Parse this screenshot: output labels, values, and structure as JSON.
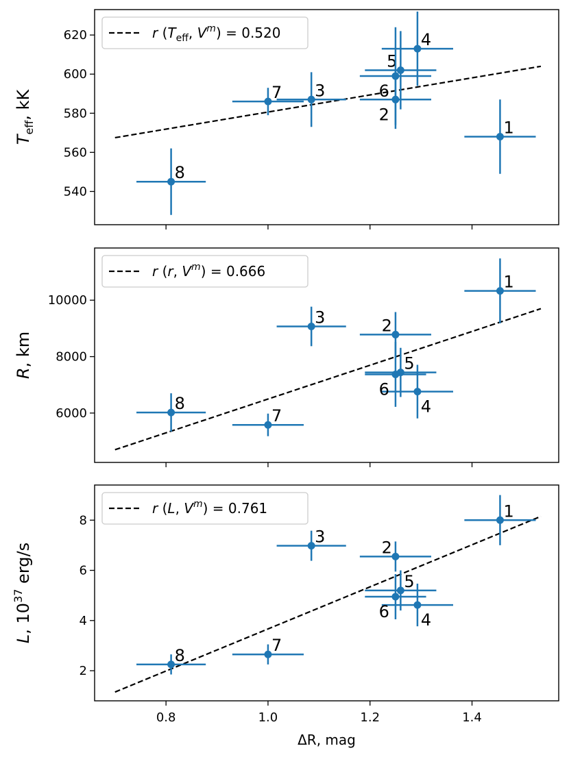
{
  "chart_data": {
    "type": "scatter",
    "xlabel": "ΔR, mag",
    "x_ticks": [
      "0.8",
      "1.0",
      "1.2",
      "1.4"
    ],
    "x_tick_values": [
      0.8,
      1.0,
      1.2,
      1.4
    ],
    "xlim": [
      0.66,
      1.57
    ],
    "panels": [
      {
        "id": "teff",
        "ylabel_main": "T",
        "ylabel_sub": "eff",
        "ylabel_rest": ", kK",
        "ylim": [
          523,
          633
        ],
        "y_ticks": [
          "540",
          "560",
          "580",
          "600",
          "620"
        ],
        "y_tick_values": [
          540,
          560,
          580,
          600,
          620
        ],
        "legend": {
          "r": "r",
          "lp": "(",
          "var_main": "T",
          "var_sub": "eff",
          "comma": ", ",
          "v": "V",
          "v_sup": "m",
          "rp": ")",
          "eq": " = 0.520"
        },
        "fit": [
          [
            0.7,
            567.5
          ],
          [
            1.535,
            604
          ]
        ],
        "points": [
          {
            "label": "1",
            "x": 1.455,
            "y": 568,
            "xerr": 0.07,
            "yerr": 19,
            "label_pos": "right-up"
          },
          {
            "label": "2",
            "x": 1.25,
            "y": 587,
            "xerr": 0.07,
            "yerr": 15,
            "label_pos": "left-down"
          },
          {
            "label": "3",
            "x": 1.085,
            "y": 587,
            "xerr": 0.068,
            "yerr": 14,
            "label_pos": "right-up"
          },
          {
            "label": "4",
            "x": 1.293,
            "y": 613,
            "xerr": 0.07,
            "yerr": 19,
            "label_pos": "right-up"
          },
          {
            "label": "5",
            "x": 1.26,
            "y": 602,
            "xerr": 0.07,
            "yerr": 20,
            "label_pos": "left-up"
          },
          {
            "label": "6",
            "x": 1.25,
            "y": 599,
            "xerr": 0.07,
            "yerr": 25,
            "label_pos": "left-down"
          },
          {
            "label": "7",
            "x": 1.0,
            "y": 586,
            "xerr": 0.07,
            "yerr": 7,
            "label_pos": "right-up"
          },
          {
            "label": "8",
            "x": 0.81,
            "y": 545,
            "xerr": 0.068,
            "yerr": 17,
            "label_pos": "right-up"
          }
        ]
      },
      {
        "id": "radius",
        "ylabel_main": "R",
        "ylabel_sub": "",
        "ylabel_rest": ", km",
        "ylim": [
          4250,
          11850
        ],
        "y_ticks": [
          "6000",
          "8000",
          "10000"
        ],
        "y_tick_values": [
          6000,
          8000,
          10000
        ],
        "legend": {
          "r": "r",
          "lp": "(",
          "var_main": "r",
          "var_sub": "",
          "comma": ", ",
          "v": "V",
          "v_sup": "m",
          "rp": ")",
          "eq": " = 0.666"
        },
        "fit": [
          [
            0.7,
            4700
          ],
          [
            1.535,
            9700
          ]
        ],
        "points": [
          {
            "label": "1",
            "x": 1.455,
            "y": 10330,
            "xerr": 0.07,
            "yerr": 1150,
            "label_pos": "right-up"
          },
          {
            "label": "2",
            "x": 1.25,
            "y": 8780,
            "xerr": 0.07,
            "yerr": 800,
            "label_pos": "left-up"
          },
          {
            "label": "3",
            "x": 1.085,
            "y": 9070,
            "xerr": 0.068,
            "yerr": 700,
            "label_pos": "right-up"
          },
          {
            "label": "4",
            "x": 1.293,
            "y": 6760,
            "xerr": 0.07,
            "yerr": 950,
            "label_pos": "right-down"
          },
          {
            "label": "5",
            "x": 1.26,
            "y": 7440,
            "xerr": 0.07,
            "yerr": 870,
            "label_pos": "right-up"
          },
          {
            "label": "6",
            "x": 1.25,
            "y": 7370,
            "xerr": 0.06,
            "yerr": 1150,
            "label_pos": "left-down"
          },
          {
            "label": "7",
            "x": 1.0,
            "y": 5580,
            "xerr": 0.07,
            "yerr": 400,
            "label_pos": "right-up"
          },
          {
            "label": "8",
            "x": 0.81,
            "y": 6020,
            "xerr": 0.068,
            "yerr": 680,
            "label_pos": "right-up"
          }
        ]
      },
      {
        "id": "lum",
        "ylabel_main": "L",
        "ylabel_sub": "",
        "ylabel_rest": ", 10",
        "ylabel_sup": "37",
        "ylabel_unit": " erg/s",
        "ylim": [
          0.8,
          9.4
        ],
        "y_ticks": [
          "2",
          "4",
          "6",
          "8"
        ],
        "y_tick_values": [
          2,
          4,
          6,
          8
        ],
        "legend": {
          "r": "r",
          "lp": "(",
          "var_main": "L",
          "var_sub": "",
          "comma": ", ",
          "v": "V",
          "v_sup": "m",
          "rp": ")",
          "eq": " = 0.761"
        },
        "fit": [
          [
            0.7,
            1.15
          ],
          [
            1.535,
            8.15
          ]
        ],
        "points": [
          {
            "label": "1",
            "x": 1.455,
            "y": 8.0,
            "xerr": 0.07,
            "yerr": 1.0,
            "label_pos": "right-up"
          },
          {
            "label": "2",
            "x": 1.25,
            "y": 6.55,
            "xerr": 0.07,
            "yerr": 0.6,
            "label_pos": "left-up"
          },
          {
            "label": "3",
            "x": 1.085,
            "y": 6.98,
            "xerr": 0.068,
            "yerr": 0.6,
            "label_pos": "right-up"
          },
          {
            "label": "4",
            "x": 1.293,
            "y": 4.62,
            "xerr": 0.07,
            "yerr": 0.85,
            "label_pos": "right-down"
          },
          {
            "label": "5",
            "x": 1.26,
            "y": 5.2,
            "xerr": 0.07,
            "yerr": 0.8,
            "label_pos": "right-up"
          },
          {
            "label": "6",
            "x": 1.25,
            "y": 4.95,
            "xerr": 0.06,
            "yerr": 0.9,
            "label_pos": "left-down"
          },
          {
            "label": "7",
            "x": 1.0,
            "y": 2.65,
            "xerr": 0.07,
            "yerr": 0.4,
            "label_pos": "right-up"
          },
          {
            "label": "8",
            "x": 0.81,
            "y": 2.25,
            "xerr": 0.068,
            "yerr": 0.4,
            "label_pos": "right-up"
          }
        ]
      }
    ]
  },
  "colors": {
    "point": "#1f77b4",
    "fit": "#000000",
    "axes": "#000000",
    "legend_border": "#cccccc"
  }
}
